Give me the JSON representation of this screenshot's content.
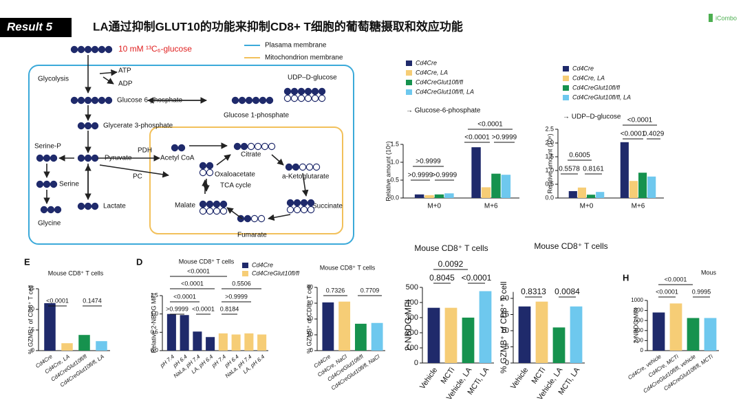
{
  "header": {
    "result": "Result 5",
    "title": "LA通过抑制GLUT10的功能来抑制CD8+ T细胞的葡萄糖摄取和效应功能",
    "logo": "iCombo"
  },
  "diagram": {
    "tracer": "10 mM ¹³C₆-glucose",
    "legend": [
      "Plasama membrane",
      "Mitochondrion membrane"
    ],
    "labels": [
      "Glycolysis",
      "ATP",
      "ADP",
      "Glucose 6-phosphate",
      "UDP–D-glucose",
      "Glucose 1-phosphate",
      "Glycerate 3-phosphate",
      "Serine-P",
      "PDH",
      "Pyruvate",
      "Acetyl CoA",
      "Citrate",
      "PC",
      "Oxaloacetate",
      "TCA cycle",
      "a-Ketoglutarate",
      "Serine",
      "Lactate",
      "Malate",
      "Succinate",
      "Glycine",
      "Fumarate"
    ]
  },
  "chart_data": [
    {
      "type": "bar",
      "subtitle": "→ Glucose-6-phosphate",
      "ylabel": "Relative amount (10⁶)",
      "categories": [
        "M+0",
        "M+6"
      ],
      "series": [
        {
          "name": "Cd4Cre",
          "color": "#1f2a6b",
          "values": [
            0.1,
            1.42
          ]
        },
        {
          "name": "Cd4Cre, LA",
          "color": "#f6cd76",
          "values": [
            0.08,
            0.3
          ]
        },
        {
          "name": "Cd4CreGlut10fl/fl",
          "color": "#16924e",
          "values": [
            0.1,
            0.68
          ]
        },
        {
          "name": "Cd4CreGlut10fl/fl, LA",
          "color": "#6ec8ee",
          "values": [
            0.13,
            0.65
          ]
        }
      ],
      "ylim": [
        0,
        1.5
      ],
      "yticks": [
        {
          "value": 0,
          "label": "0.0"
        },
        {
          "value": 0.5,
          "label": "0.5"
        },
        {
          "value": 1,
          "label": "1.0"
        },
        {
          "value": 1.5,
          "label": "1.5"
        }
      ],
      "annotations": [
        "<0.0001",
        "<0.0001",
        ">0.9999",
        ">0.9999",
        ">0.9999",
        ">0.9999"
      ]
    },
    {
      "type": "bar",
      "subtitle": "→ UDP–D-glucose",
      "ylabel": "Relative amount (10⁶)",
      "categories": [
        "M+0",
        "M+6"
      ],
      "series": [
        {
          "name": "Cd4Cre",
          "color": "#1f2a6b",
          "values": [
            0.25,
            2.03
          ]
        },
        {
          "name": "Cd4Cre, LA",
          "color": "#f6cd76",
          "values": [
            0.38,
            0.62
          ]
        },
        {
          "name": "Cd4CreGlut10fl/fl",
          "color": "#16924e",
          "values": [
            0.12,
            0.92
          ]
        },
        {
          "name": "Cd4CreGlut10fl/fl, LA",
          "color": "#6ec8ee",
          "values": [
            0.22,
            0.78
          ]
        }
      ],
      "ylim": [
        0,
        2.5
      ],
      "yticks": [
        {
          "value": 0,
          "label": "0.0"
        },
        {
          "value": 0.5,
          "label": "0.5"
        },
        {
          "value": 1,
          "label": "1.0"
        },
        {
          "value": 1.5,
          "label": "1.5"
        },
        {
          "value": 2,
          "label": "2.0"
        },
        {
          "value": 2.5,
          "label": "2.5"
        }
      ],
      "annotations": [
        "<0.0001",
        "<0.0001",
        "0.4029",
        "0.6005",
        "0.5578",
        "0.8161"
      ]
    },
    {
      "type": "bar",
      "panel_label": "E",
      "title": "Mouse CD8⁺ T cells",
      "ylabel": "% GZMB⁺ of CD8⁺ T cell",
      "categories": [
        "Cd4Cre",
        "Cd4Cre, LA",
        "Cd4CreGlut10fl/fl",
        "Cd4CreGlut10fl/fl, LA"
      ],
      "values": [
        11.5,
        1.8,
        3.8,
        2.3
      ],
      "colors": [
        "#1f2a6b",
        "#f6cd76",
        "#16924e",
        "#6ec8ee"
      ],
      "ylim": [
        0,
        15
      ],
      "yticks": [
        0,
        5,
        10,
        15
      ],
      "annotations": [
        "<0.0001",
        "0.1474"
      ]
    },
    {
      "type": "bar",
      "panel_label": "D",
      "title": "Mouse CD8⁺ T cells",
      "ylabel": "Relative 2-NBDG MFI",
      "categories": [
        "pH 7.4",
        "pH 6.4",
        "NaLa, pH 7.4",
        "LA, pH 6.4",
        "pH 7.4",
        "pH 6.4",
        "NaLa, pH 7.4",
        "LA, pH 6.4"
      ],
      "series": [
        {
          "name": "Cd4Cre",
          "color": "#1f2a6b",
          "values": [
            1.0,
            0.97,
            0.52,
            0.37,
            null,
            null,
            null,
            null
          ]
        },
        {
          "name": "Cd4CreGlut10fl/fl",
          "color": "#f6cd76",
          "values": [
            null,
            null,
            null,
            null,
            0.47,
            0.44,
            0.47,
            0.44
          ]
        }
      ],
      "ylim": [
        0,
        1.5
      ],
      "yticks": [
        {
          "value": 0,
          "label": "0.0"
        },
        {
          "value": 0.5,
          "label": "0.5"
        },
        {
          "value": 1,
          "label": "1.0"
        },
        {
          "value": 1.5,
          "label": "1.5"
        }
      ],
      "annotations": [
        "<0.0001",
        "<0.0001",
        "0.5506",
        "<0.0001",
        ">0.9999",
        ">0.9999",
        "<0.0001",
        "0.8184"
      ]
    },
    {
      "type": "bar",
      "title": "Mouse CD8⁺ T cells",
      "ylabel": "% GZMB⁺ of CD8⁺ T cell",
      "categories": [
        "Cd4Cre",
        "Cd4Cre, NaCl",
        "Cd4CreGlut10fl/fl",
        "Cd4CreGlut10fl/fl, NaCl"
      ],
      "values": [
        30.5,
        31,
        17,
        17.5
      ],
      "colors": [
        "#1f2a6b",
        "#f6cd76",
        "#16924e",
        "#6ec8ee"
      ],
      "ylim": [
        0,
        40
      ],
      "yticks": [
        0,
        10,
        20,
        30,
        40
      ],
      "annotations": [
        "0.7326",
        "0.7709"
      ]
    },
    {
      "type": "bar",
      "title": "Mouse CD8⁺ T cells",
      "ylabel": "2-NBDG MFI",
      "categories": [
        "Vehicle",
        "MCTi",
        "Vehicle, LA",
        "MCTi, LA"
      ],
      "values": [
        365,
        365,
        300,
        475
      ],
      "colors": [
        "#1f2a6b",
        "#f6cd76",
        "#16924e",
        "#6ec8ee"
      ],
      "ylim": [
        0,
        500
      ],
      "yticks": [
        0,
        100,
        200,
        300,
        400,
        500
      ],
      "annotations": [
        "0.0092",
        "0.8045",
        "<0.0001"
      ]
    },
    {
      "type": "bar",
      "title": "Mouse CD8⁺ T cells",
      "ylabel": "% GZMB⁺ of CD8⁺ T cell",
      "categories": [
        "Vehicle",
        "MCTi",
        "Vehicle, LA",
        "MCTi, LA"
      ],
      "values": [
        17.5,
        19,
        11,
        17.5
      ],
      "colors": [
        "#1f2a6b",
        "#f6cd76",
        "#16924e",
        "#6ec8ee"
      ],
      "ylim": [
        0,
        22
      ],
      "yticks": [
        0,
        5,
        10,
        15,
        20
      ],
      "annotations": [
        "0.8313",
        "0.0084"
      ]
    },
    {
      "type": "bar",
      "panel_label": "H",
      "title": "Mous",
      "ylabel": "2-NBDG MFI",
      "categories": [
        "Cd4Cre, vehicle",
        "Cd4Cre, MCTi",
        "Cd4CreGlut10fl/fl, vehicle",
        "Cd4CreGlut10fl/fl, MCTi"
      ],
      "values": [
        760,
        940,
        650,
        650
      ],
      "colors": [
        "#1f2a6b",
        "#f6cd76",
        "#16924e",
        "#6ec8ee"
      ],
      "ylim": [
        0,
        1000
      ],
      "yticks": [
        0,
        200,
        400,
        600,
        800,
        1000
      ],
      "annotations": [
        "<0.0001",
        "<0.0001",
        "0.9995"
      ]
    }
  ]
}
